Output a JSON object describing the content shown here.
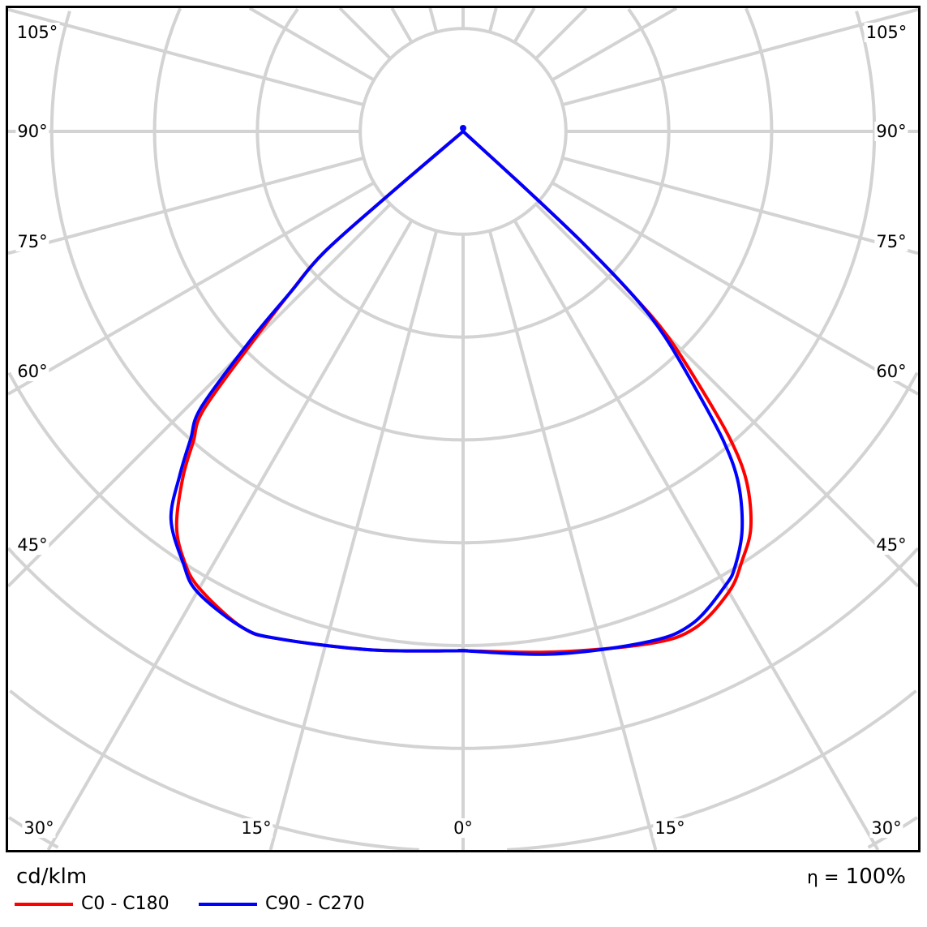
{
  "chart_data": {
    "type": "polar",
    "unit_label": "cd/klm",
    "efficiency_symbol": "η =",
    "efficiency": "100%",
    "angle_labels": {
      "left": [
        "105°",
        "90°",
        "75°",
        "60°",
        "45°"
      ],
      "bottom": [
        "30°",
        "15°",
        "0°",
        "15°",
        "30°"
      ],
      "right": [
        "105°",
        "90°",
        "75°",
        "60°",
        "45°"
      ]
    },
    "radial_ring_labels": [],
    "grid": true,
    "angle_step_deg": 15,
    "legend_placement": "bottom-left",
    "series": [
      {
        "name": "C0 - C180",
        "color": "#ff0000",
        "right": [
          [
            0,
            5.05
          ],
          [
            10,
            5.14
          ],
          [
            20,
            5.3
          ],
          [
            25,
            5.33
          ],
          [
            30,
            5.17
          ],
          [
            33,
            4.98
          ],
          [
            36,
            4.76
          ],
          [
            39,
            4.38
          ],
          [
            41,
            3.95
          ],
          [
            43,
            3.35
          ],
          [
            45,
            2.8
          ],
          [
            46,
            2.3
          ],
          [
            47,
            1.6
          ],
          [
            47.5,
            0.85
          ],
          [
            48,
            0
          ]
        ],
        "left": [
          [
            0,
            5.05
          ],
          [
            10,
            5.12
          ],
          [
            20,
            5.25
          ],
          [
            24,
            5.28
          ],
          [
            30,
            5.13
          ],
          [
            33,
            4.98
          ],
          [
            36,
            4.74
          ],
          [
            39,
            4.33
          ],
          [
            41,
            4.0
          ],
          [
            43,
            3.7
          ],
          [
            45,
            2.9
          ],
          [
            47,
            2.3
          ],
          [
            49,
            1.78
          ],
          [
            49.5,
            0.94
          ],
          [
            50,
            0
          ]
        ]
      },
      {
        "name": "C90 - C270",
        "color": "#0000ff",
        "right": [
          [
            0,
            5.05
          ],
          [
            10,
            5.16
          ],
          [
            20,
            5.28
          ],
          [
            25,
            5.28
          ],
          [
            30,
            5.1
          ],
          [
            32,
            4.99
          ],
          [
            35,
            4.73
          ],
          [
            38,
            4.35
          ],
          [
            40,
            3.95
          ],
          [
            42,
            3.4
          ],
          [
            44.5,
            2.8
          ],
          [
            46,
            2.3
          ],
          [
            47,
            1.6
          ],
          [
            47.5,
            0.85
          ],
          [
            48,
            0
          ]
        ],
        "left": [
          [
            0,
            5.05
          ],
          [
            10,
            5.12
          ],
          [
            20,
            5.25
          ],
          [
            24,
            5.28
          ],
          [
            30,
            5.17
          ],
          [
            33,
            5.0
          ],
          [
            37,
            4.72
          ],
          [
            39.5,
            4.33
          ],
          [
            41.5,
            4.0
          ],
          [
            43.5,
            3.7
          ],
          [
            45.5,
            2.9
          ],
          [
            47,
            2.3
          ],
          [
            49,
            1.78
          ],
          [
            49.5,
            0.94
          ],
          [
            50,
            0
          ]
        ]
      }
    ]
  }
}
